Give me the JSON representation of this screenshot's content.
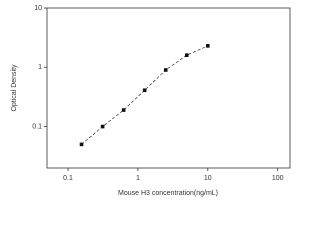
{
  "chart_data": {
    "type": "scatter",
    "x_label": "Mouse H3 concentration(ng/mL)",
    "y_label": "Optical Density",
    "x": [
      0.156,
      0.3125,
      0.625,
      1.25,
      2.5,
      5,
      10
    ],
    "values": [
      0.05,
      0.1,
      0.19,
      0.41,
      0.9,
      1.6,
      2.3
    ],
    "color": "#111111",
    "log_x": true,
    "log_y": true,
    "fit_line": true,
    "xlim": [
      0.05,
      150
    ],
    "xticks": [
      0.1,
      1,
      10,
      100
    ],
    "ylim": [
      0.02,
      10
    ],
    "yticks": [
      0.1,
      1,
      10
    ]
  }
}
